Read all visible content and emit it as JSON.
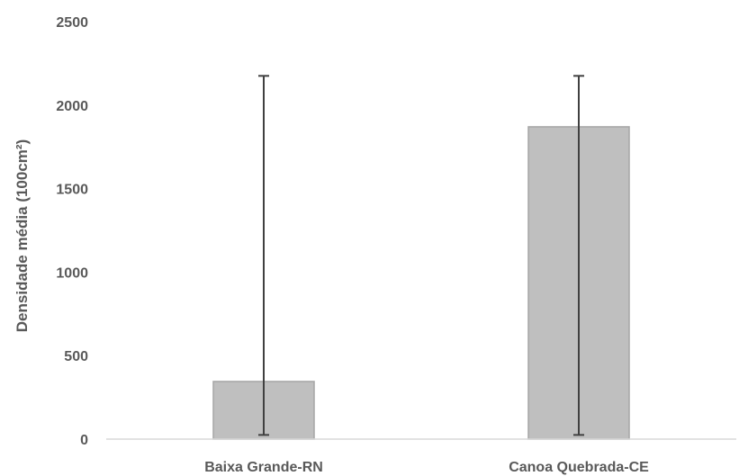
{
  "chart_data": {
    "type": "bar",
    "title": "",
    "xlabel": "",
    "ylabel": "Densidade média (100cm²)",
    "categories": [
      "Baixa Grande-RN",
      "Canoa Quebrada-CE"
    ],
    "values": [
      345,
      1870
    ],
    "error_bars": [
      {
        "low": 25,
        "high": 2175
      },
      {
        "low": 25,
        "high": 2175
      }
    ],
    "ylim": [
      0,
      2500
    ],
    "yticks": [
      "0",
      "500",
      "1000",
      "1500",
      "2000",
      "2500"
    ],
    "grid": false,
    "legend": "none",
    "colors": {
      "bar_fill": "#bfbfbf",
      "bar_stroke": "#a6a6a6",
      "error_bar": "#404040",
      "axis": "#d9d9d9"
    }
  }
}
